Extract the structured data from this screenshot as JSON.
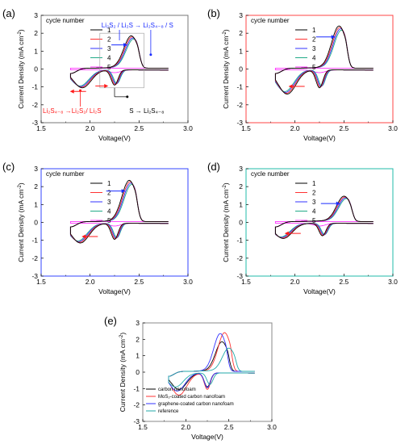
{
  "colors": {
    "cycle_1": "#000000",
    "cycle_2": "#ff3333",
    "cycle_3": "#3333ff",
    "cycle_4": "#22aa88",
    "cycle_5": "#ff33ff",
    "frame_a": "#777777",
    "frame_b": "#ff4444",
    "frame_c": "#3344ff",
    "frame_d": "#22bbaa",
    "frame_e": "#888888",
    "annot_blue": "#1a2bff",
    "annot_red": "#ff1a1a",
    "annot_black": "#000000",
    "e_carbon": "#000000",
    "e_mos2": "#ff3333",
    "e_graphene": "#3333ff",
    "e_reference": "#22aaaa"
  },
  "chart_data": [
    {
      "id": "a",
      "panel_label": "(a)",
      "type": "line",
      "xlabel": "Voltage(V)",
      "ylabel": "Current Density (mA cm",
      "ylabel_sup": "-2",
      "ylabel_end": ")",
      "xlim": [
        1.5,
        3.0
      ],
      "ylim": [
        -3,
        3
      ],
      "xticks": [
        "1.5",
        "2.0",
        "2.5",
        "3.0"
      ],
      "yticks": [
        "-3",
        "-2",
        "-1",
        "0",
        "1",
        "2",
        "3"
      ],
      "legend_title": "cycle number",
      "series": [
        {
          "name": "1",
          "color_key": "cycle_1"
        },
        {
          "name": "2",
          "color_key": "cycle_2"
        },
        {
          "name": "3",
          "color_key": "cycle_3"
        },
        {
          "name": "4",
          "color_key": "cycle_4"
        },
        {
          "name": "5",
          "color_key": "cycle_5"
        }
      ],
      "peaks": {
        "ox_v": 2.42,
        "ox_i": 1.75,
        "red1_v": 1.92,
        "red1_i": -1.0,
        "red2_v": 2.25,
        "red2_i": -0.85
      },
      "annotations": {
        "ox_text_1": "Li",
        "ox_text_2": "S",
        "ox_full": "Li₂S₂ / Li₂S → Li₂S₄₋₈ / S",
        "red_low_full": "Li₂S₄₋₈ →Li₂S₂/ Li₂S",
        "red_high_full": "S → Li₂S₄₋₈"
      }
    },
    {
      "id": "b",
      "panel_label": "(b)",
      "type": "line",
      "xlabel": "Voltage(V)",
      "ylabel": "Current Density (mA cm",
      "ylabel_sup": "-2",
      "ylabel_end": ")",
      "xlim": [
        1.5,
        3.0
      ],
      "ylim": [
        -3,
        3
      ],
      "xticks": [
        "1.5",
        "2.0",
        "2.5",
        "3.0"
      ],
      "yticks": [
        "-3",
        "-2",
        "-1",
        "0",
        "1",
        "2",
        "3"
      ],
      "legend_title": "cycle number",
      "series": [
        {
          "name": "1",
          "color_key": "cycle_1"
        },
        {
          "name": "2",
          "color_key": "cycle_2"
        },
        {
          "name": "3",
          "color_key": "cycle_3"
        },
        {
          "name": "4",
          "color_key": "cycle_4"
        },
        {
          "name": "5",
          "color_key": "cycle_5"
        }
      ],
      "peaks": {
        "ox_v": 2.45,
        "ox_i": 2.3,
        "red1_v": 1.92,
        "red1_i": -1.35,
        "red2_v": 2.25,
        "red2_i": -1.0
      }
    },
    {
      "id": "c",
      "panel_label": "(c)",
      "type": "line",
      "xlabel": "Voltage(V)",
      "ylabel": "Current Density (mA cm",
      "ylabel_sup": "-2",
      "ylabel_end": ")",
      "xlim": [
        1.5,
        3.0
      ],
      "ylim": [
        -3,
        3
      ],
      "xticks": [
        "1.5",
        "2.0",
        "2.5",
        "3.0"
      ],
      "yticks": [
        "-3",
        "-2",
        "-1",
        "0",
        "1",
        "2",
        "3"
      ],
      "legend_title": "cycle number",
      "series": [
        {
          "name": "1",
          "color_key": "cycle_1"
        },
        {
          "name": "2",
          "color_key": "cycle_2"
        },
        {
          "name": "3",
          "color_key": "cycle_3"
        },
        {
          "name": "4",
          "color_key": "cycle_4"
        },
        {
          "name": "5",
          "color_key": "cycle_5"
        }
      ],
      "peaks": {
        "ox_v": 2.4,
        "ox_i": 2.25,
        "red1_v": 1.9,
        "red1_i": -1.1,
        "red2_v": 2.25,
        "red2_i": -0.9
      }
    },
    {
      "id": "d",
      "panel_label": "(d)",
      "type": "line",
      "xlabel": "Voltage(V)",
      "ylabel": "Current Density (mA cm",
      "ylabel_sup": "-2",
      "ylabel_end": ")",
      "xlim": [
        1.5,
        3.0
      ],
      "ylim": [
        -3,
        3
      ],
      "xticks": [
        "1.5",
        "2.0",
        "2.5",
        "3.0"
      ],
      "yticks": [
        "-3",
        "-2",
        "-1",
        "0",
        "1",
        "2",
        "3"
      ],
      "legend_title": "cycle number",
      "series": [
        {
          "name": "1",
          "color_key": "cycle_1"
        },
        {
          "name": "2",
          "color_key": "cycle_2"
        },
        {
          "name": "3",
          "color_key": "cycle_3"
        },
        {
          "name": "4",
          "color_key": "cycle_4"
        },
        {
          "name": "5",
          "color_key": "cycle_5"
        }
      ],
      "peaks": {
        "ox_v": 2.5,
        "ox_i": 1.35,
        "red1_v": 1.88,
        "red1_i": -0.85,
        "red2_v": 2.28,
        "red2_i": -0.7
      }
    },
    {
      "id": "e",
      "panel_label": "(e)",
      "type": "line",
      "xlabel": "Voltage(V)",
      "ylabel": "Current Density (mA cm",
      "ylabel_sup": "-2",
      "ylabel_end": ")",
      "xlim": [
        1.5,
        3.0
      ],
      "ylim": [
        -3,
        3
      ],
      "xticks": [
        "1.5",
        "2.0",
        "2.5",
        "3.0"
      ],
      "yticks": [
        "-3",
        "-2",
        "-1",
        "0",
        "1",
        "2",
        "3"
      ],
      "legend_entries": [
        {
          "name": "carbon nanofoam",
          "color_key": "e_carbon",
          "peaks": {
            "ox_v": 2.42,
            "ox_i": 1.75,
            "red1_v": 1.92,
            "red1_i": -1.0,
            "red2_v": 2.25,
            "red2_i": -0.85
          }
        },
        {
          "name": "MoS₂-coated carbon nanofoam",
          "color_key": "e_mos2",
          "peaks": {
            "ox_v": 2.45,
            "ox_i": 2.3,
            "red1_v": 1.92,
            "red1_i": -1.35,
            "red2_v": 2.25,
            "red2_i": -1.0
          }
        },
        {
          "name": "graphene-coated carbon nanofoam",
          "color_key": "e_graphene",
          "peaks": {
            "ox_v": 2.4,
            "ox_i": 2.25,
            "red1_v": 1.9,
            "red1_i": -1.1,
            "red2_v": 2.25,
            "red2_i": -0.9
          }
        },
        {
          "name": "reference",
          "color_key": "e_reference",
          "peaks": {
            "ox_v": 2.5,
            "ox_i": 1.35,
            "red1_v": 1.88,
            "red1_i": -0.85,
            "red2_v": 2.28,
            "red2_i": -0.7
          }
        }
      ]
    }
  ]
}
